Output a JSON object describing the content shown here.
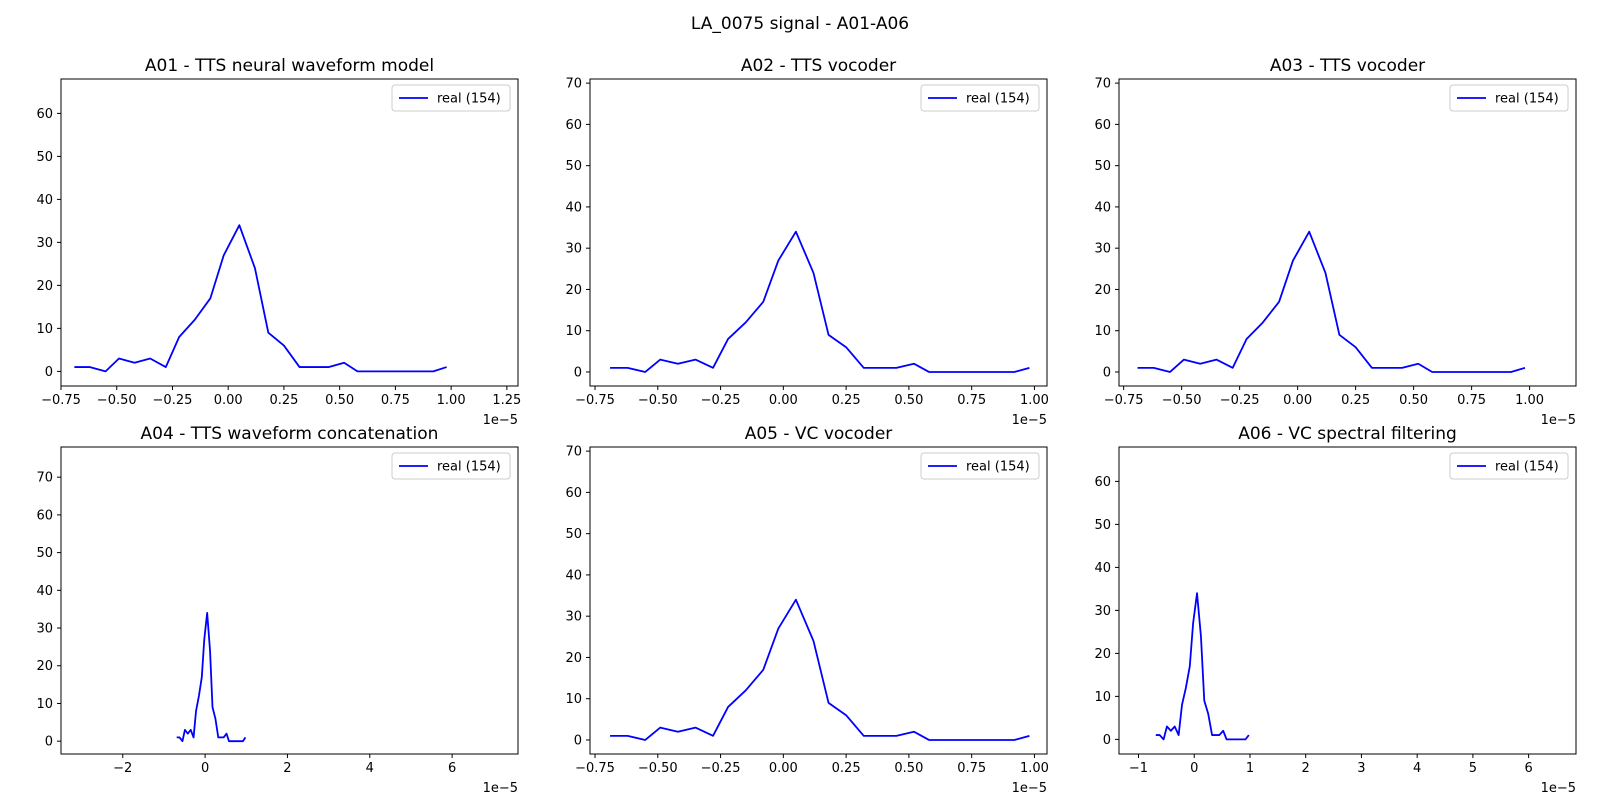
{
  "figure": {
    "suptitle": "LA_0075 signal - A01-A06"
  },
  "chart_data": [
    {
      "type": "line",
      "title": "A01 - TTS neural waveform model",
      "x_offset_label": "1e−5",
      "xlim": [
        -0.75,
        1.3
      ],
      "xticks": [
        -0.75,
        -0.5,
        -0.25,
        0.0,
        0.25,
        0.5,
        0.75,
        1.0,
        1.25
      ],
      "xtick_labels": [
        "−0.75",
        "−0.50",
        "−0.25",
        "0.00",
        "0.25",
        "0.50",
        "0.75",
        "1.00",
        "1.25"
      ],
      "ylim": [
        -3.4,
        68
      ],
      "yticks": [
        0,
        10,
        20,
        30,
        40,
        50,
        60
      ],
      "ytick_labels": [
        "0",
        "10",
        "20",
        "30",
        "40",
        "50",
        "60"
      ],
      "legend": "top-right",
      "series": [
        {
          "name": "real (154)",
          "color": "#0000ff",
          "x": [
            -0.69,
            -0.62,
            -0.55,
            -0.49,
            -0.42,
            -0.35,
            -0.28,
            -0.22,
            -0.15,
            -0.08,
            -0.02,
            0.05,
            0.12,
            0.18,
            0.25,
            0.32,
            0.38,
            0.45,
            0.52,
            0.58,
            0.65,
            0.72,
            0.78,
            0.85,
            0.92,
            0.98
          ],
          "y": [
            1,
            1,
            0,
            3,
            2,
            3,
            1,
            8,
            12,
            17,
            27,
            34,
            24,
            9,
            6,
            1,
            1,
            1,
            2,
            0,
            0,
            0,
            0,
            0,
            0,
            1
          ]
        }
      ]
    },
    {
      "type": "line",
      "title": "A02 - TTS vocoder",
      "x_offset_label": "1e−5",
      "xlim": [
        -0.77,
        1.05
      ],
      "xticks": [
        -0.75,
        -0.5,
        -0.25,
        0.0,
        0.25,
        0.5,
        0.75,
        1.0
      ],
      "xtick_labels": [
        "−0.75",
        "−0.50",
        "−0.25",
        "0.00",
        "0.25",
        "0.50",
        "0.75",
        "1.00"
      ],
      "ylim": [
        -3.4,
        71
      ],
      "yticks": [
        0,
        10,
        20,
        30,
        40,
        50,
        60,
        70
      ],
      "ytick_labels": [
        "0",
        "10",
        "20",
        "30",
        "40",
        "50",
        "60",
        "70"
      ],
      "legend": "top-right",
      "series": [
        {
          "name": "real (154)",
          "color": "#0000ff",
          "x": [
            -0.69,
            -0.62,
            -0.55,
            -0.49,
            -0.42,
            -0.35,
            -0.28,
            -0.22,
            -0.15,
            -0.08,
            -0.02,
            0.05,
            0.12,
            0.18,
            0.25,
            0.32,
            0.38,
            0.45,
            0.52,
            0.58,
            0.65,
            0.72,
            0.78,
            0.85,
            0.92,
            0.98
          ],
          "y": [
            1,
            1,
            0,
            3,
            2,
            3,
            1,
            8,
            12,
            17,
            27,
            34,
            24,
            9,
            6,
            1,
            1,
            1,
            2,
            0,
            0,
            0,
            0,
            0,
            0,
            1
          ]
        }
      ]
    },
    {
      "type": "line",
      "title": "A03 - TTS vocoder",
      "x_offset_label": "1e−5",
      "xlim": [
        -0.77,
        1.2
      ],
      "xticks": [
        -0.75,
        -0.5,
        -0.25,
        0.0,
        0.25,
        0.5,
        0.75,
        1.0
      ],
      "xtick_labels": [
        "−0.75",
        "−0.50",
        "−0.25",
        "0.00",
        "0.25",
        "0.50",
        "0.75",
        "1.00"
      ],
      "ylim": [
        -3.4,
        71
      ],
      "yticks": [
        0,
        10,
        20,
        30,
        40,
        50,
        60,
        70
      ],
      "ytick_labels": [
        "0",
        "10",
        "20",
        "30",
        "40",
        "50",
        "60",
        "70"
      ],
      "legend": "top-right",
      "series": [
        {
          "name": "real (154)",
          "color": "#0000ff",
          "x": [
            -0.69,
            -0.62,
            -0.55,
            -0.49,
            -0.42,
            -0.35,
            -0.28,
            -0.22,
            -0.15,
            -0.08,
            -0.02,
            0.05,
            0.12,
            0.18,
            0.25,
            0.32,
            0.38,
            0.45,
            0.52,
            0.58,
            0.65,
            0.72,
            0.78,
            0.85,
            0.92,
            0.98
          ],
          "y": [
            1,
            1,
            0,
            3,
            2,
            3,
            1,
            8,
            12,
            17,
            27,
            34,
            24,
            9,
            6,
            1,
            1,
            1,
            2,
            0,
            0,
            0,
            0,
            0,
            0,
            1
          ]
        }
      ]
    },
    {
      "type": "line",
      "title": "A04 - TTS waveform concatenation",
      "x_offset_label": "1e−5",
      "xlim": [
        -3.5,
        7.6
      ],
      "xticks": [
        -2,
        0,
        2,
        4,
        6
      ],
      "xtick_labels": [
        "−2",
        "0",
        "2",
        "4",
        "6"
      ],
      "ylim": [
        -3.4,
        78
      ],
      "yticks": [
        0,
        10,
        20,
        30,
        40,
        50,
        60,
        70
      ],
      "ytick_labels": [
        "0",
        "10",
        "20",
        "30",
        "40",
        "50",
        "60",
        "70"
      ],
      "legend": "top-right",
      "series": [
        {
          "name": "real (154)",
          "color": "#0000ff",
          "x": [
            -0.69,
            -0.62,
            -0.55,
            -0.49,
            -0.42,
            -0.35,
            -0.28,
            -0.22,
            -0.15,
            -0.08,
            -0.02,
            0.05,
            0.12,
            0.18,
            0.25,
            0.32,
            0.38,
            0.45,
            0.52,
            0.58,
            0.65,
            0.72,
            0.78,
            0.85,
            0.92,
            0.98
          ],
          "y": [
            1,
            1,
            0,
            3,
            2,
            3,
            1,
            8,
            12,
            17,
            27,
            34,
            24,
            9,
            6,
            1,
            1,
            1,
            2,
            0,
            0,
            0,
            0,
            0,
            0,
            1
          ]
        }
      ]
    },
    {
      "type": "line",
      "title": "A05 - VC vocoder",
      "x_offset_label": "1e−5",
      "xlim": [
        -0.77,
        1.05
      ],
      "xticks": [
        -0.75,
        -0.5,
        -0.25,
        0.0,
        0.25,
        0.5,
        0.75,
        1.0
      ],
      "xtick_labels": [
        "−0.75",
        "−0.50",
        "−0.25",
        "0.00",
        "0.25",
        "0.50",
        "0.75",
        "1.00"
      ],
      "ylim": [
        -3.4,
        71
      ],
      "yticks": [
        0,
        10,
        20,
        30,
        40,
        50,
        60,
        70
      ],
      "ytick_labels": [
        "0",
        "10",
        "20",
        "30",
        "40",
        "50",
        "60",
        "70"
      ],
      "legend": "top-right",
      "series": [
        {
          "name": "real (154)",
          "color": "#0000ff",
          "x": [
            -0.69,
            -0.62,
            -0.55,
            -0.49,
            -0.42,
            -0.35,
            -0.28,
            -0.22,
            -0.15,
            -0.08,
            -0.02,
            0.05,
            0.12,
            0.18,
            0.25,
            0.32,
            0.38,
            0.45,
            0.52,
            0.58,
            0.65,
            0.72,
            0.78,
            0.85,
            0.92,
            0.98
          ],
          "y": [
            1,
            1,
            0,
            3,
            2,
            3,
            1,
            8,
            12,
            17,
            27,
            34,
            24,
            9,
            6,
            1,
            1,
            1,
            2,
            0,
            0,
            0,
            0,
            0,
            0,
            1
          ]
        }
      ]
    },
    {
      "type": "line",
      "title": "A06 - VC spectral filtering",
      "x_offset_label": "1e−5",
      "xlim": [
        -1.35,
        6.85
      ],
      "xticks": [
        -1,
        0,
        1,
        2,
        3,
        4,
        5,
        6
      ],
      "xtick_labels": [
        "−1",
        "0",
        "1",
        "2",
        "3",
        "4",
        "5",
        "6"
      ],
      "ylim": [
        -3.4,
        68
      ],
      "yticks": [
        0,
        10,
        20,
        30,
        40,
        50,
        60
      ],
      "ytick_labels": [
        "0",
        "10",
        "20",
        "30",
        "40",
        "50",
        "60"
      ],
      "legend": "top-right",
      "series": [
        {
          "name": "real (154)",
          "color": "#0000ff",
          "x": [
            -0.69,
            -0.62,
            -0.55,
            -0.49,
            -0.42,
            -0.35,
            -0.28,
            -0.22,
            -0.15,
            -0.08,
            -0.02,
            0.05,
            0.12,
            0.18,
            0.25,
            0.32,
            0.38,
            0.45,
            0.52,
            0.58,
            0.65,
            0.72,
            0.78,
            0.85,
            0.92,
            0.98
          ],
          "y": [
            1,
            1,
            0,
            3,
            2,
            3,
            1,
            8,
            12,
            17,
            27,
            34,
            24,
            9,
            6,
            1,
            1,
            1,
            2,
            0,
            0,
            0,
            0,
            0,
            0,
            1
          ]
        }
      ]
    }
  ]
}
